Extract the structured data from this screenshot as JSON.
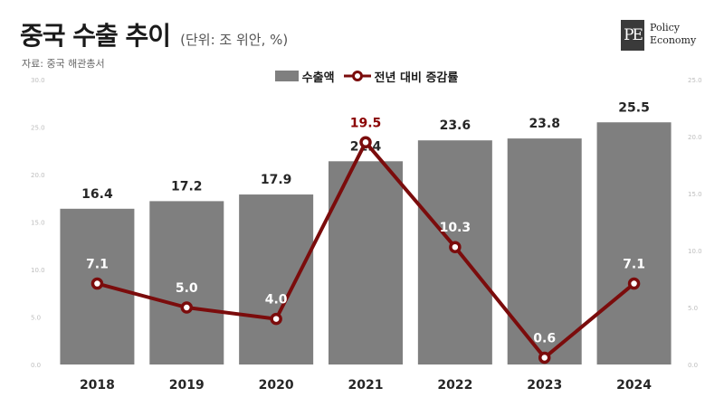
{
  "header": {
    "title": "중국 수출 추이",
    "unit": "(단위: 조 위안, %)",
    "source": "자료: 중국 해관총서"
  },
  "logo": {
    "mark": "PE",
    "line1": "Policy",
    "line2": "Economy"
  },
  "colors": {
    "bar": "#7f7f7f",
    "line": "#7b0c0c",
    "marker_fill": "#ffffff"
  },
  "chart_data": {
    "type": "bar",
    "categories": [
      "2018",
      "2019",
      "2020",
      "2021",
      "2022",
      "2023",
      "2024"
    ],
    "series": [
      {
        "name": "수출액",
        "type": "bar",
        "axis": "left",
        "values": [
          16.4,
          17.2,
          17.9,
          21.4,
          23.6,
          23.8,
          25.5
        ],
        "labels": [
          "16.4",
          "17.2",
          "17.9",
          "21.4",
          "23.6",
          "23.8",
          "25.5"
        ]
      },
      {
        "name": "전년 대비 증감률",
        "type": "line",
        "axis": "right",
        "values": [
          7.1,
          5.0,
          4.0,
          19.5,
          10.3,
          0.6,
          7.1
        ],
        "labels": [
          "7.1",
          "5.0",
          "4.0",
          "19.5",
          "10.3",
          "0.6",
          "7.1"
        ]
      }
    ],
    "y_left": {
      "range": [
        0,
        30
      ],
      "ticks": [
        "0.0",
        "5.0",
        "10.0",
        "15.0",
        "20.0",
        "25.0",
        "30.0"
      ]
    },
    "y_right": {
      "range": [
        0,
        25
      ],
      "ticks": [
        "0.0",
        "5.0",
        "10.0",
        "15.0",
        "20.0",
        "25.0"
      ]
    },
    "legend_position": "top-center",
    "grid": false
  }
}
